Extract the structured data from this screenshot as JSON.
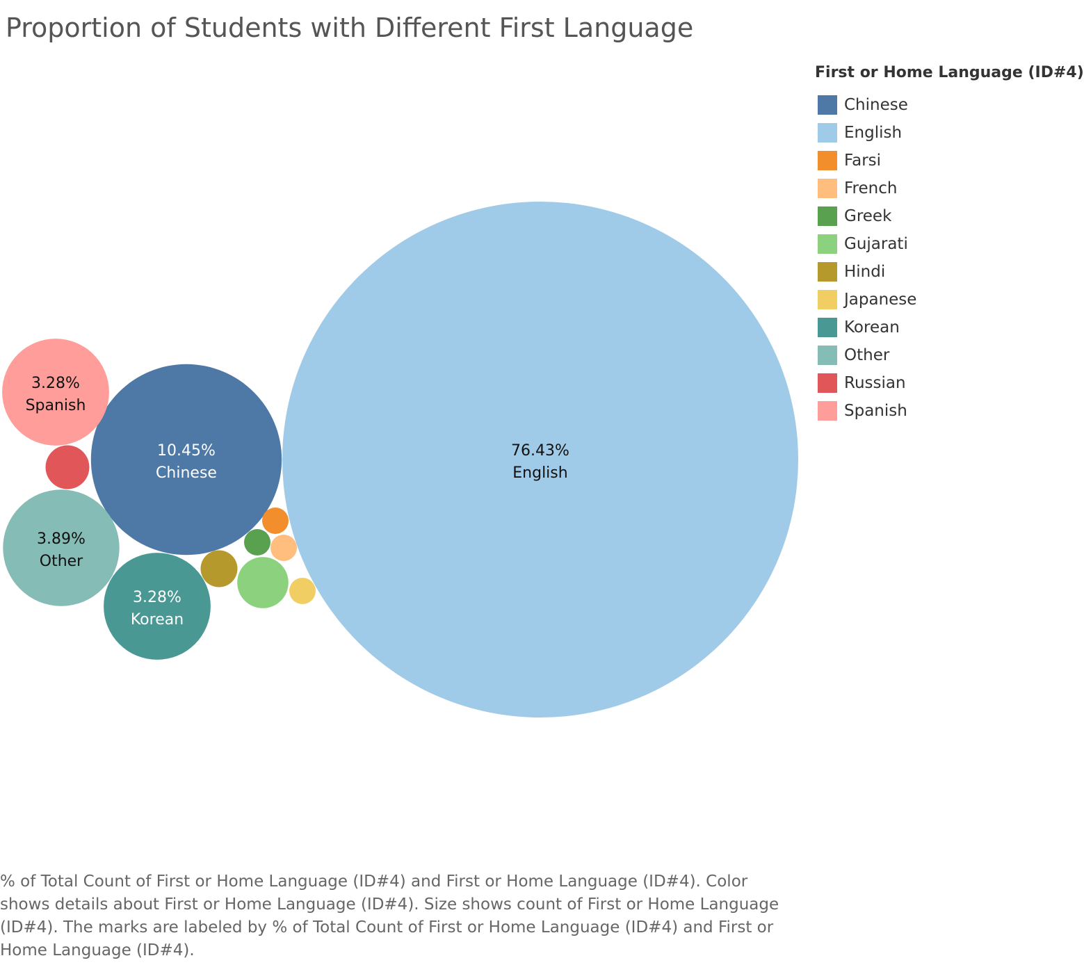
{
  "title": "Proportion of Students with Different First Language",
  "legend": {
    "title": "First or Home Language (ID#4)"
  },
  "caption": "% of Total Count of First or Home Language (ID#4) and First or Home Language (ID#4).  Color shows details about First or Home Language (ID#4).  Size shows count of First or Home Language (ID#4).  The marks are labeled by % of Total Count of First or Home Language (ID#4) and First or Home Language (ID#4).",
  "chart_data": {
    "type": "bubble",
    "series": [
      {
        "name": "Chinese",
        "value": 10.45,
        "label": "10.45%",
        "color": "#4e79a7",
        "label_color": "#ffffff"
      },
      {
        "name": "English",
        "value": 76.43,
        "label": "76.43%",
        "color": "#a0cbe8",
        "label_color": "#111111"
      },
      {
        "name": "Farsi",
        "value": 0.2,
        "label": "",
        "color": "#f28e2b",
        "label_color": "#111111"
      },
      {
        "name": "French",
        "value": 0.2,
        "label": "",
        "color": "#ffbe7d",
        "label_color": "#111111"
      },
      {
        "name": "Greek",
        "value": 0.2,
        "label": "",
        "color": "#59a14f",
        "label_color": "#111111"
      },
      {
        "name": "Gujarati",
        "value": 0.75,
        "label": "",
        "color": "#8cd17d",
        "label_color": "#111111"
      },
      {
        "name": "Hindi",
        "value": 0.39,
        "label": "",
        "color": "#b6992d",
        "label_color": "#111111"
      },
      {
        "name": "Japanese",
        "value": 0.2,
        "label": "",
        "color": "#f1ce63",
        "label_color": "#111111"
      },
      {
        "name": "Korean",
        "value": 3.28,
        "label": "3.28%",
        "color": "#499894",
        "label_color": "#ffffff"
      },
      {
        "name": "Other",
        "value": 3.89,
        "label": "3.89%",
        "color": "#86bcb6",
        "label_color": "#111111"
      },
      {
        "name": "Russian",
        "value": 0.55,
        "label": "",
        "color": "#e15759",
        "label_color": "#111111"
      },
      {
        "name": "Spanish",
        "value": 3.28,
        "label": "3.28%",
        "color": "#ff9d9a",
        "label_color": "#111111"
      }
    ]
  }
}
